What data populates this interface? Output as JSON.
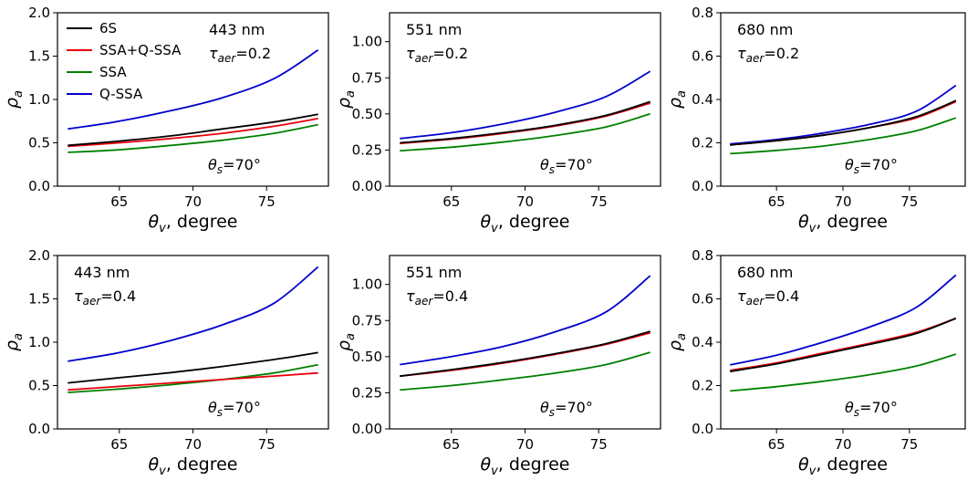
{
  "chart_data": [
    {
      "type": "line",
      "panel": "top-left",
      "wavelength": "443 nm",
      "tau": "0.2",
      "theta_s": "70°",
      "ylim": [
        0,
        2.0
      ],
      "yticks": [
        0.0,
        0.5,
        1.0,
        1.5,
        2.0
      ],
      "xlim": [
        60.8,
        79.2
      ],
      "xticks": [
        65,
        70,
        75
      ],
      "legend": true,
      "series": [
        {
          "name": "6S",
          "color": "#000000",
          "values": [
            0.47,
            0.52,
            0.58,
            0.66,
            0.74,
            0.83
          ]
        },
        {
          "name": "SSA+Q-SSA",
          "color": "#e8000b",
          "values": [
            0.46,
            0.5,
            0.55,
            0.61,
            0.69,
            0.78
          ]
        },
        {
          "name": "SSA",
          "color": "#008000",
          "values": [
            0.39,
            0.42,
            0.47,
            0.53,
            0.61,
            0.71
          ]
        },
        {
          "name": "Q-SSA",
          "color": "#0000cc",
          "values": [
            0.66,
            0.75,
            0.87,
            1.02,
            1.24,
            1.57
          ]
        }
      ]
    },
    {
      "type": "line",
      "panel": "top-middle",
      "wavelength": "551 nm",
      "tau": "0.2",
      "theta_s": "70°",
      "ylim": [
        0,
        1.2
      ],
      "yticks": [
        0.0,
        0.25,
        0.5,
        0.75,
        1.0
      ],
      "xlim": [
        60.8,
        79.2
      ],
      "xticks": [
        65,
        70,
        75
      ],
      "legend": false,
      "series": [
        {
          "name": "6S",
          "color": "#000000",
          "values": [
            0.3,
            0.33,
            0.37,
            0.42,
            0.49,
            0.585
          ]
        },
        {
          "name": "SSA+Q-SSA",
          "color": "#e8000b",
          "values": [
            0.295,
            0.325,
            0.365,
            0.415,
            0.485,
            0.575
          ]
        },
        {
          "name": "SSA",
          "color": "#008000",
          "values": [
            0.245,
            0.27,
            0.305,
            0.35,
            0.41,
            0.5
          ]
        },
        {
          "name": "Q-SSA",
          "color": "#0000cc",
          "values": [
            0.33,
            0.37,
            0.43,
            0.51,
            0.62,
            0.795
          ]
        }
      ]
    },
    {
      "type": "line",
      "panel": "top-right",
      "wavelength": "680 nm",
      "tau": "0.2",
      "theta_s": "70°",
      "ylim": [
        0,
        0.8
      ],
      "yticks": [
        0.0,
        0.2,
        0.4,
        0.6,
        0.8
      ],
      "xlim": [
        60.8,
        79.2
      ],
      "xticks": [
        65,
        70,
        75
      ],
      "legend": false,
      "series": [
        {
          "name": "6S",
          "color": "#000000",
          "values": [
            0.19,
            0.21,
            0.235,
            0.27,
            0.32,
            0.395
          ]
        },
        {
          "name": "SSA+Q-SSA",
          "color": "#e8000b",
          "values": [
            0.19,
            0.21,
            0.235,
            0.27,
            0.315,
            0.39
          ]
        },
        {
          "name": "SSA",
          "color": "#008000",
          "values": [
            0.15,
            0.165,
            0.185,
            0.215,
            0.255,
            0.315
          ]
        },
        {
          "name": "Q-SSA",
          "color": "#0000cc",
          "values": [
            0.195,
            0.215,
            0.245,
            0.285,
            0.345,
            0.465
          ]
        }
      ]
    },
    {
      "type": "line",
      "panel": "bottom-left",
      "wavelength": "443 nm",
      "tau": "0.4",
      "theta_s": "70°",
      "ylim": [
        0,
        2.0
      ],
      "yticks": [
        0.0,
        0.5,
        1.0,
        1.5,
        2.0
      ],
      "xlim": [
        60.8,
        79.2
      ],
      "xticks": [
        65,
        70,
        75
      ],
      "legend": false,
      "series": [
        {
          "name": "6S",
          "color": "#000000",
          "values": [
            0.53,
            0.59,
            0.65,
            0.72,
            0.8,
            0.88
          ]
        },
        {
          "name": "SSA+Q-SSA",
          "color": "#e8000b",
          "values": [
            0.45,
            0.49,
            0.53,
            0.57,
            0.61,
            0.645
          ]
        },
        {
          "name": "SSA",
          "color": "#008000",
          "values": [
            0.42,
            0.46,
            0.51,
            0.57,
            0.645,
            0.74
          ]
        },
        {
          "name": "Q-SSA",
          "color": "#0000cc",
          "values": [
            0.78,
            0.88,
            1.02,
            1.2,
            1.45,
            1.87
          ]
        }
      ]
    },
    {
      "type": "line",
      "panel": "bottom-middle",
      "wavelength": "551 nm",
      "tau": "0.4",
      "theta_s": "70°",
      "ylim": [
        0,
        1.2
      ],
      "yticks": [
        0.0,
        0.25,
        0.5,
        0.75,
        1.0
      ],
      "xlim": [
        60.8,
        79.2
      ],
      "xticks": [
        65,
        70,
        75
      ],
      "legend": false,
      "series": [
        {
          "name": "6S",
          "color": "#000000",
          "values": [
            0.365,
            0.41,
            0.46,
            0.52,
            0.59,
            0.675
          ]
        },
        {
          "name": "SSA+Q-SSA",
          "color": "#e8000b",
          "values": [
            0.365,
            0.405,
            0.455,
            0.515,
            0.585,
            0.665
          ]
        },
        {
          "name": "SSA",
          "color": "#008000",
          "values": [
            0.27,
            0.3,
            0.34,
            0.385,
            0.445,
            0.53
          ]
        },
        {
          "name": "Q-SSA",
          "color": "#0000cc",
          "values": [
            0.445,
            0.5,
            0.57,
            0.67,
            0.81,
            1.06
          ]
        }
      ]
    },
    {
      "type": "line",
      "panel": "bottom-right",
      "wavelength": "680 nm",
      "tau": "0.4",
      "theta_s": "70°",
      "ylim": [
        0,
        0.8
      ],
      "yticks": [
        0.0,
        0.2,
        0.4,
        0.6,
        0.8
      ],
      "xlim": [
        60.8,
        79.2
      ],
      "xticks": [
        65,
        70,
        75
      ],
      "legend": false,
      "series": [
        {
          "name": "6S",
          "color": "#000000",
          "values": [
            0.265,
            0.3,
            0.345,
            0.39,
            0.44,
            0.51
          ]
        },
        {
          "name": "SSA+Q-SSA",
          "color": "#e8000b",
          "values": [
            0.27,
            0.305,
            0.35,
            0.395,
            0.445,
            0.51
          ]
        },
        {
          "name": "SSA",
          "color": "#008000",
          "values": [
            0.175,
            0.195,
            0.22,
            0.25,
            0.29,
            0.345
          ]
        },
        {
          "name": "Q-SSA",
          "color": "#0000cc",
          "values": [
            0.295,
            0.34,
            0.4,
            0.47,
            0.56,
            0.71
          ]
        }
      ]
    }
  ],
  "x_values": [
    61.5,
    65,
    68.5,
    72,
    75.5,
    78.5
  ],
  "labels": {
    "xlabel_symbol": "θ",
    "xlabel_sub": "v",
    "xlabel_rest": ", degree",
    "ylabel_symbol": "ρ",
    "ylabel_sub": "a",
    "tau_symbol": "τ",
    "tau_sub": "aer",
    "theta_s_symbol": "θ",
    "theta_s_sub": "s"
  }
}
